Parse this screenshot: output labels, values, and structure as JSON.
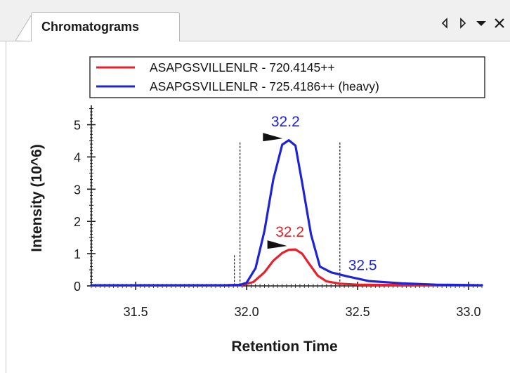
{
  "window": {
    "tab_title": "Chromatograms",
    "controls": [
      "prev-tab-icon",
      "next-tab-icon",
      "dropdown-icon",
      "close-icon"
    ]
  },
  "chart_data": {
    "type": "line",
    "xlabel": "Retention Time",
    "ylabel": "Intensity (10^6)",
    "xlim": [
      31.3,
      33.06
    ],
    "ylim": [
      0,
      5.6
    ],
    "xticks": [
      "31.5",
      "32.0",
      "32.5",
      "33.0"
    ],
    "yticks": [
      "0",
      "1",
      "2",
      "3",
      "4",
      "5"
    ],
    "legend_position": "top",
    "series": [
      {
        "name": "ASAPGSVILLENLR - 720.4145++",
        "color": "#e8202a",
        "x": [
          31.3,
          31.9,
          31.98,
          32.03,
          32.08,
          32.12,
          32.16,
          32.19,
          32.22,
          32.25,
          32.28,
          32.32,
          32.36,
          32.42,
          32.5,
          32.6,
          33.06
        ],
        "y": [
          0.02,
          0.02,
          0.03,
          0.12,
          0.42,
          0.78,
          1.02,
          1.12,
          1.13,
          1.0,
          0.7,
          0.32,
          0.14,
          0.07,
          0.04,
          0.03,
          0.02
        ]
      },
      {
        "name": "ASAPGSVILLENLR - 725.4186++ (heavy)",
        "color": "#1e24d6",
        "x": [
          31.3,
          31.9,
          31.97,
          32.0,
          32.04,
          32.08,
          32.12,
          32.16,
          32.19,
          32.22,
          32.25,
          32.29,
          32.33,
          32.38,
          32.45,
          32.55,
          32.7,
          32.85,
          33.06
        ],
        "y": [
          0.02,
          0.02,
          0.03,
          0.1,
          0.55,
          1.7,
          3.3,
          4.38,
          4.52,
          4.35,
          3.2,
          1.6,
          0.6,
          0.42,
          0.3,
          0.15,
          0.08,
          0.04,
          0.02
        ]
      }
    ],
    "annotations": [
      {
        "text": "32.2",
        "x": 32.2,
        "series": 1,
        "color": "#1e24d6"
      },
      {
        "text": "32.2",
        "x": 32.22,
        "series": 0,
        "color": "#e8202a"
      },
      {
        "text": "32.5",
        "x": 32.44,
        "series": 1,
        "color": "#1e24d6"
      }
    ],
    "integration_bounds": [
      31.97,
      32.42
    ]
  }
}
